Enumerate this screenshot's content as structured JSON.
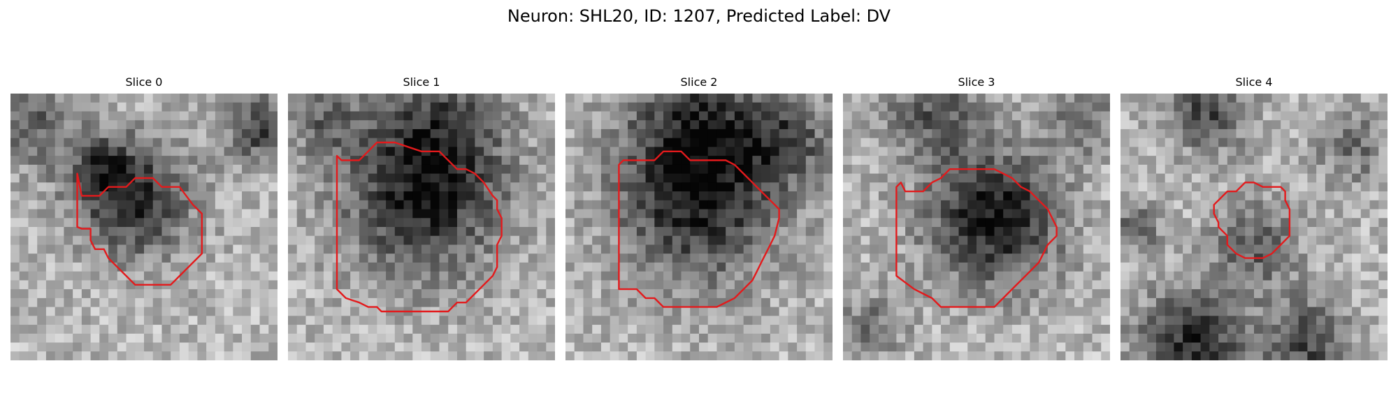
{
  "figure": {
    "title": "Neuron: SHL20, ID: 1207, Predicted Label: DV"
  },
  "panels": [
    {
      "title": "Slice 0"
    },
    {
      "title": "Slice 1"
    },
    {
      "title": "Slice 2"
    },
    {
      "title": "Slice 3"
    },
    {
      "title": "Slice 4"
    }
  ],
  "colors": {
    "contour": "#e31a1c",
    "colormap": "gray_r"
  }
}
